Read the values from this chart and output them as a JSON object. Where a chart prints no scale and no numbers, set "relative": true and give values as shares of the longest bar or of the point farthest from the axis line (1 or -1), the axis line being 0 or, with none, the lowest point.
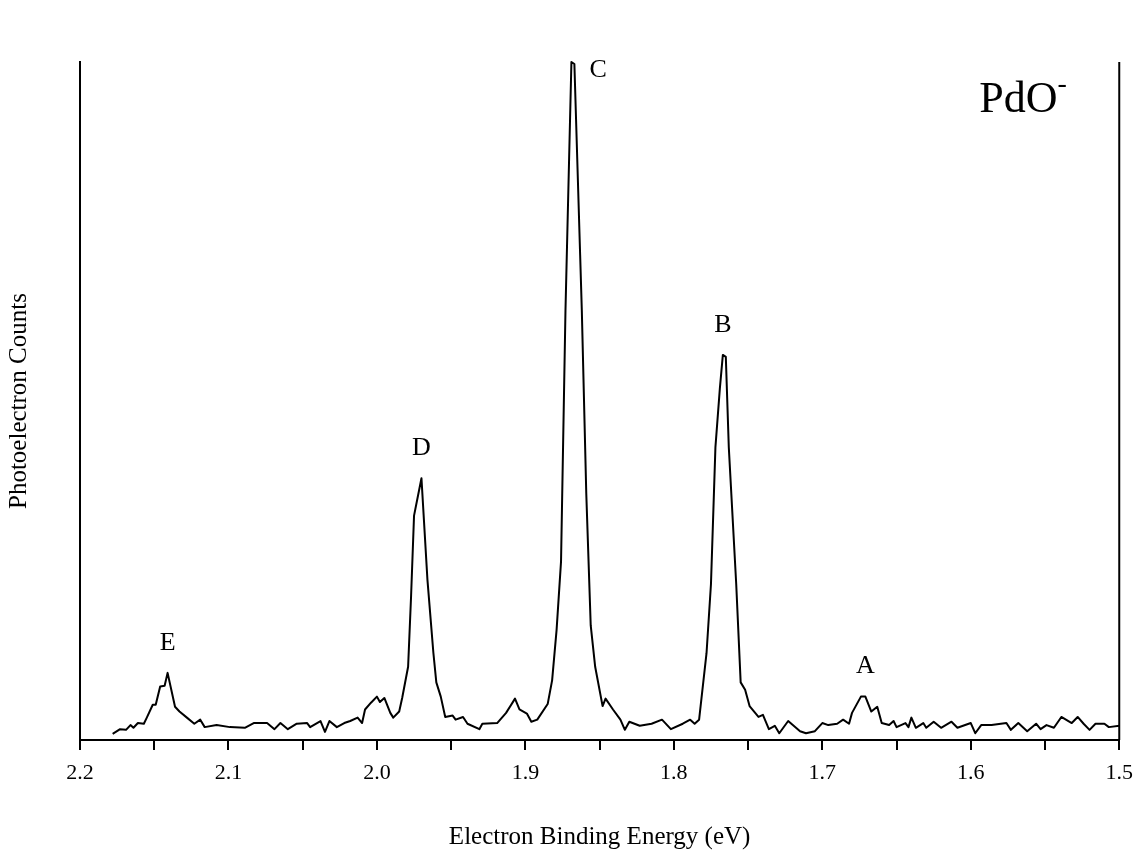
{
  "chart_data": {
    "type": "line",
    "title": "PdO$^{-}$",
    "xlabel": "Electron Binding Energy (eV)",
    "ylabel": "Photoelectron Counts",
    "relative": true,
    "legend": false,
    "grid": false,
    "marker": "none",
    "line_style": "solid",
    "xlim": [
      2.2,
      1.5
    ],
    "xticks": [
      2.2,
      {
        "value": 2.15,
        "label": null
      },
      2.1,
      {
        "value": 2.05,
        "label": null
      },
      {
        "value": 2.0,
        "label": "2.0"
      },
      {
        "value": 1.95,
        "label": null
      },
      1.9,
      {
        "value": 1.85,
        "label": null
      },
      1.8,
      {
        "value": 1.75,
        "label": null
      },
      1.7,
      {
        "value": 1.65,
        "label": null
      },
      1.6,
      {
        "value": 1.55,
        "label": null
      },
      1.5
    ],
    "annotations": [
      {
        "text": "A",
        "x": 1.671,
        "y": 0.064
      },
      {
        "text": "B",
        "x": 1.767,
        "y": 0.568
      },
      {
        "text": "C",
        "x": 1.869,
        "y": 1
      },
      {
        "text": "D",
        "x": 1.97,
        "y": 0.386
      },
      {
        "text": "E",
        "x": 2.141,
        "y": 0.099
      }
    ],
    "series": [
      {
        "color": "#000000",
        "x": [
          2.178,
          2.173,
          2.169,
          2.166,
          2.164,
          2.161,
          2.157,
          2.155,
          2.151,
          2.149,
          2.146,
          2.143,
          2.141,
          2.136,
          2.133,
          2.128,
          2.123,
          2.119,
          2.116,
          2.108,
          2.099,
          2.089,
          2.083,
          2.074,
          2.069,
          2.065,
          2.06,
          2.054,
          2.047,
          2.045,
          2.038,
          2.035,
          2.032,
          2.027,
          2.022,
          2.018,
          2.013,
          2.01,
          2.008,
          2.004,
          2.0,
          1.998,
          1.995,
          1.991,
          1.989,
          1.985,
          1.983,
          1.979,
          1.977,
          1.975,
          1.97,
          1.966,
          1.962,
          1.96,
          1.957,
          1.954,
          1.949,
          1.947,
          1.942,
          1.939,
          1.931,
          1.929,
          1.919,
          1.913,
          1.907,
          1.904,
          1.899,
          1.896,
          1.892,
          1.885,
          1.882,
          1.879,
          1.876,
          1.873,
          1.869,
          1.867,
          1.862,
          1.859,
          1.856,
          1.853,
          1.848,
          1.846,
          1.841,
          1.836,
          1.833,
          1.83,
          1.823,
          1.815,
          1.808,
          1.802,
          1.794,
          1.789,
          1.786,
          1.783,
          1.778,
          1.775,
          1.772,
          1.769,
          1.767,
          1.765,
          1.763,
          1.758,
          1.755,
          1.752,
          1.749,
          1.743,
          1.74,
          1.736,
          1.732,
          1.729,
          1.723,
          1.715,
          1.711,
          1.705,
          1.7,
          1.696,
          1.69,
          1.686,
          1.682,
          1.68,
          1.674,
          1.671,
          1.667,
          1.663,
          1.66,
          1.655,
          1.652,
          1.65,
          1.644,
          1.642,
          1.64,
          1.637,
          1.632,
          1.63,
          1.625,
          1.62,
          1.613,
          1.609,
          1.6,
          1.597,
          1.593,
          1.586,
          1.576,
          1.573,
          1.568,
          1.562,
          1.556,
          1.553,
          1.549,
          1.544,
          1.539,
          1.532,
          1.528,
          1.524,
          1.52,
          1.516,
          1.51,
          1.507,
          1.5
        ],
        "values": [
          0.009,
          0.016,
          0.015,
          0.022,
          0.018,
          0.025,
          0.024,
          0.033,
          0.052,
          0.052,
          0.079,
          0.08,
          0.099,
          0.049,
          0.042,
          0.033,
          0.024,
          0.03,
          0.019,
          0.022,
          0.019,
          0.018,
          0.025,
          0.025,
          0.016,
          0.025,
          0.016,
          0.024,
          0.025,
          0.019,
          0.028,
          0.012,
          0.028,
          0.019,
          0.025,
          0.028,
          0.033,
          0.025,
          0.045,
          0.055,
          0.064,
          0.056,
          0.062,
          0.04,
          0.033,
          0.042,
          0.062,
          0.108,
          0.212,
          0.331,
          0.386,
          0.237,
          0.129,
          0.085,
          0.064,
          0.034,
          0.036,
          0.03,
          0.034,
          0.024,
          0.016,
          0.024,
          0.025,
          0.04,
          0.061,
          0.045,
          0.039,
          0.027,
          0.03,
          0.053,
          0.088,
          0.162,
          0.263,
          0.634,
          1,
          0.997,
          0.634,
          0.364,
          0.169,
          0.108,
          0.05,
          0.061,
          0.045,
          0.03,
          0.015,
          0.027,
          0.021,
          0.024,
          0.03,
          0.016,
          0.024,
          0.03,
          0.024,
          0.03,
          0.128,
          0.23,
          0.432,
          0.519,
          0.568,
          0.565,
          0.432,
          0.23,
          0.085,
          0.074,
          0.05,
          0.034,
          0.037,
          0.016,
          0.021,
          0.01,
          0.028,
          0.013,
          0.01,
          0.013,
          0.025,
          0.022,
          0.024,
          0.03,
          0.024,
          0.04,
          0.064,
          0.064,
          0.042,
          0.049,
          0.025,
          0.022,
          0.028,
          0.019,
          0.025,
          0.019,
          0.033,
          0.018,
          0.025,
          0.018,
          0.027,
          0.018,
          0.027,
          0.018,
          0.025,
          0.01,
          0.022,
          0.022,
          0.025,
          0.015,
          0.025,
          0.013,
          0.024,
          0.016,
          0.022,
          0.018,
          0.034,
          0.025,
          0.034,
          0.024,
          0.015,
          0.024,
          0.024,
          0.019,
          0.021
        ]
      }
    ]
  }
}
